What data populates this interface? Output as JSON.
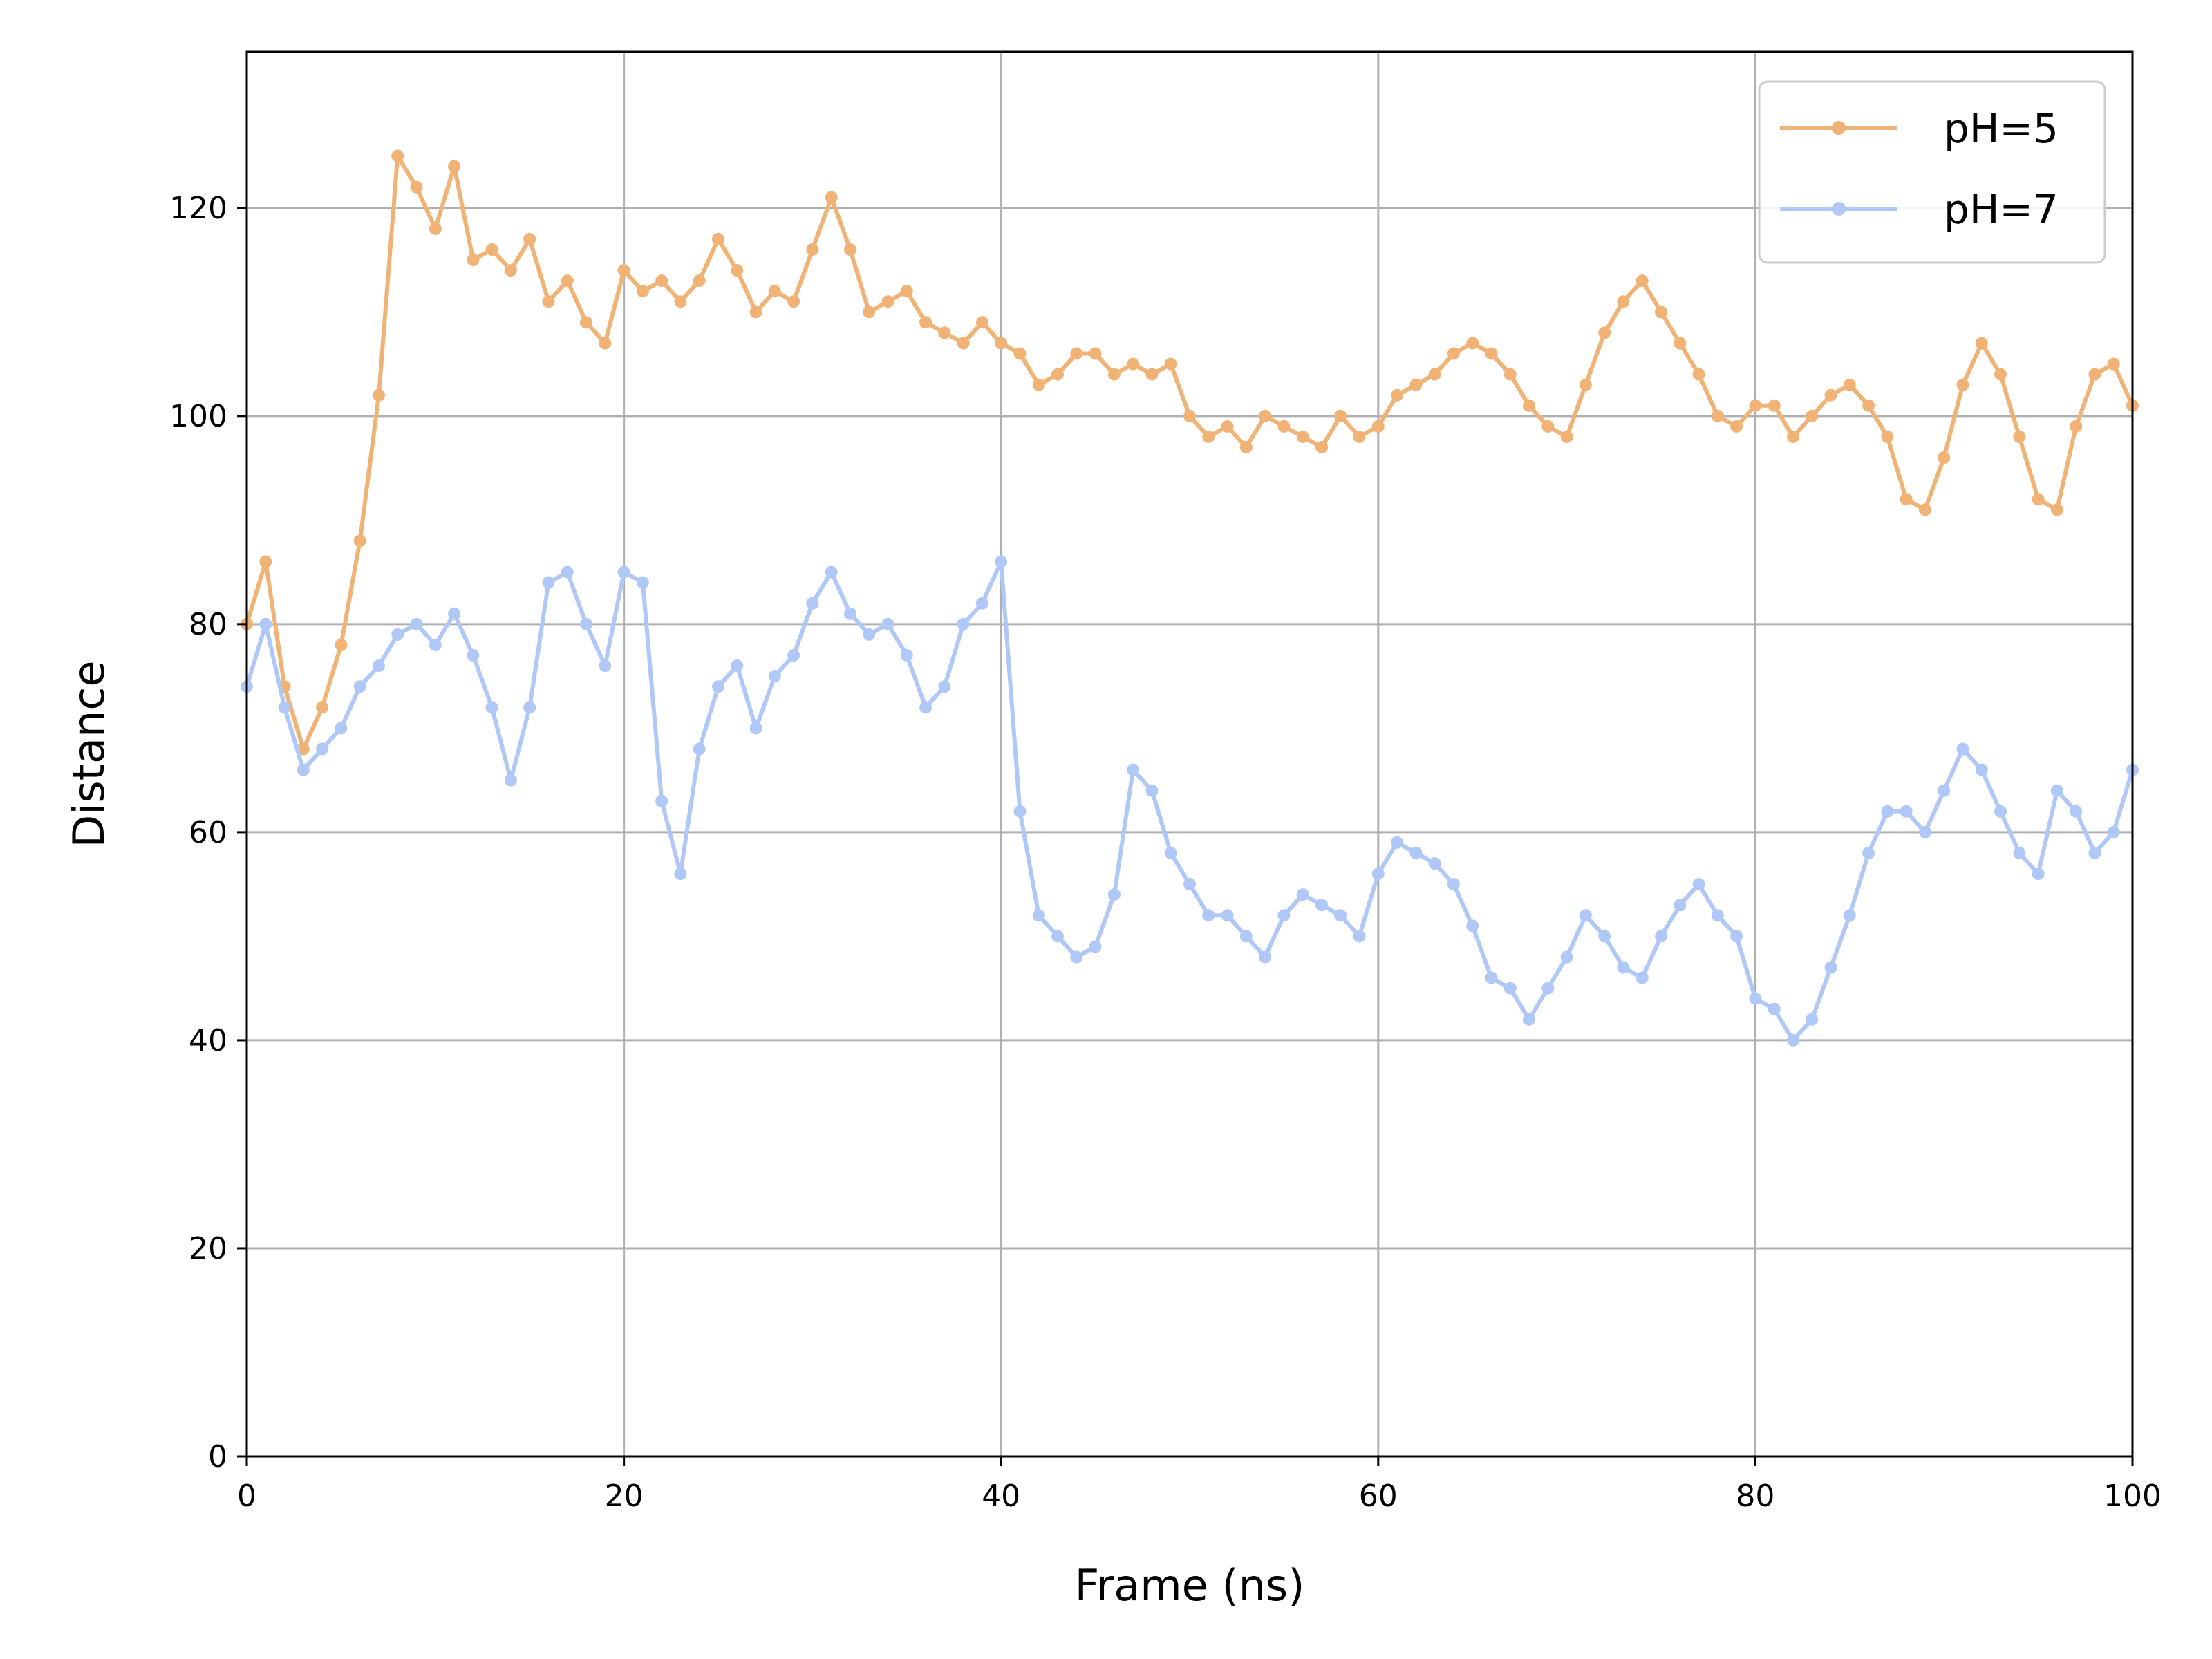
{
  "chart_data": {
    "type": "line",
    "title": "",
    "xlabel": "Frame (ns)",
    "ylabel": "Distance",
    "xlim": [
      0,
      100
    ],
    "ylim": [
      0,
      135
    ],
    "xticks": [
      0,
      20,
      40,
      60,
      80,
      100
    ],
    "yticks": [
      0,
      20,
      40,
      60,
      80,
      100,
      120
    ],
    "grid": true,
    "legend_position": "top-right",
    "series": [
      {
        "name": "pH=5",
        "color": "#f0b375",
        "marker": "circle",
        "x": [
          0,
          1,
          2,
          3,
          4,
          5,
          6,
          7,
          8,
          9,
          10,
          11,
          12,
          13,
          14,
          15,
          16,
          17,
          18,
          19,
          20,
          21,
          22,
          23,
          24,
          25,
          26,
          27,
          28,
          29,
          30,
          31,
          32,
          33,
          34,
          35,
          36,
          37,
          38,
          39,
          40,
          41,
          42,
          43,
          44,
          45,
          46,
          47,
          48,
          49,
          50,
          51,
          52,
          53,
          54,
          55,
          56,
          57,
          58,
          59,
          60,
          61,
          62,
          63,
          64,
          65,
          66,
          67,
          68,
          69,
          70,
          71,
          72,
          73,
          74,
          75,
          76,
          77,
          78,
          79,
          80,
          81,
          82,
          83,
          84,
          85,
          86,
          87,
          88,
          89,
          90,
          91,
          92,
          93,
          94,
          95,
          96,
          97,
          98,
          99,
          100
        ],
        "y": [
          80,
          86,
          74,
          68,
          72,
          78,
          88,
          102,
          125,
          122,
          118,
          124,
          115,
          116,
          114,
          117,
          111,
          113,
          109,
          107,
          114,
          112,
          113,
          111,
          113,
          117,
          114,
          110,
          112,
          111,
          116,
          121,
          116,
          110,
          111,
          112,
          109,
          108,
          107,
          109,
          107,
          106,
          103,
          104,
          106,
          106,
          104,
          105,
          104,
          105,
          100,
          98,
          99,
          97,
          100,
          99,
          98,
          97,
          100,
          98,
          99,
          102,
          103,
          104,
          106,
          107,
          106,
          104,
          101,
          99,
          98,
          103,
          108,
          111,
          113,
          110,
          107,
          104,
          100,
          99,
          101,
          101,
          98,
          100,
          102,
          103,
          101,
          98,
          92,
          91,
          96,
          103,
          107,
          104,
          98,
          92,
          91,
          99,
          104,
          105,
          101
        ]
      },
      {
        "name": "pH=7",
        "color": "#b0c8f8",
        "marker": "circle",
        "x": [
          0,
          1,
          2,
          3,
          4,
          5,
          6,
          7,
          8,
          9,
          10,
          11,
          12,
          13,
          14,
          15,
          16,
          17,
          18,
          19,
          20,
          21,
          22,
          23,
          24,
          25,
          26,
          27,
          28,
          29,
          30,
          31,
          32,
          33,
          34,
          35,
          36,
          37,
          38,
          39,
          40,
          41,
          42,
          43,
          44,
          45,
          46,
          47,
          48,
          49,
          50,
          51,
          52,
          53,
          54,
          55,
          56,
          57,
          58,
          59,
          60,
          61,
          62,
          63,
          64,
          65,
          66,
          67,
          68,
          69,
          70,
          71,
          72,
          73,
          74,
          75,
          76,
          77,
          78,
          79,
          80,
          81,
          82,
          83,
          84,
          85,
          86,
          87,
          88,
          89,
          90,
          91,
          92,
          93,
          94,
          95,
          96,
          97,
          98,
          99,
          100
        ],
        "y": [
          74,
          80,
          72,
          66,
          68,
          70,
          74,
          76,
          79,
          80,
          78,
          81,
          77,
          72,
          65,
          72,
          84,
          85,
          80,
          76,
          85,
          84,
          63,
          56,
          68,
          74,
          76,
          70,
          75,
          77,
          82,
          85,
          81,
          79,
          80,
          77,
          72,
          74,
          80,
          82,
          86,
          62,
          52,
          50,
          48,
          49,
          54,
          66,
          64,
          58,
          55,
          52,
          52,
          50,
          48,
          52,
          54,
          53,
          52,
          50,
          56,
          59,
          58,
          57,
          55,
          51,
          46,
          45,
          42,
          45,
          48,
          52,
          50,
          47,
          46,
          50,
          53,
          55,
          52,
          50,
          44,
          43,
          40,
          42,
          47,
          52,
          58,
          62,
          62,
          60,
          64,
          68,
          66,
          62,
          58,
          56,
          64,
          62,
          58,
          60,
          66
        ]
      }
    ]
  }
}
